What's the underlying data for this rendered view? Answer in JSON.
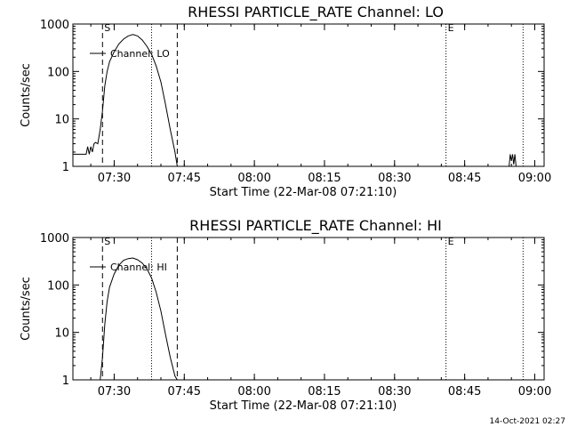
{
  "footer": {
    "timestamp": "14-Oct-2021 02:27"
  },
  "chart_data": [
    {
      "type": "line",
      "title": "RHESSI PARTICLE_RATE Channel: LO",
      "xlabel": "Start Time (22-Mar-08 07:21:10)",
      "ylabel": "Counts/sec",
      "yscale": "log",
      "xlim": [
        "07:21:10",
        "09:02:00"
      ],
      "ylim": [
        1,
        1000
      ],
      "x_ticks": [
        "07:30",
        "07:45",
        "08:00",
        "08:15",
        "08:30",
        "08:45",
        "09:00"
      ],
      "y_ticks": [
        "1",
        "10",
        "100",
        "1000"
      ],
      "legend": {
        "label": "Channel: LO",
        "placement": "top-left"
      },
      "markers": [
        {
          "label": "S",
          "time": "07:27:30",
          "style": "dashed"
        },
        {
          "label": "",
          "time": "07:38:00",
          "style": "dotted"
        },
        {
          "label": "",
          "time": "07:43:30",
          "style": "dashed"
        },
        {
          "label": "E",
          "time": "08:41:00",
          "style": "dotted"
        },
        {
          "label": "",
          "time": "08:57:30",
          "style": "dotted"
        }
      ],
      "series": [
        {
          "name": "Channel: LO",
          "segments": [
            [
              [
                "07:21:10",
                1.8
              ],
              [
                "07:22:00",
                1.8
              ],
              [
                "07:23:00",
                1.8
              ],
              [
                "07:24:00",
                1.8
              ],
              [
                "07:24:20",
                2.6
              ],
              [
                "07:24:40",
                1.8
              ],
              [
                "07:25:00",
                2.6
              ],
              [
                "07:25:20",
                2.0
              ],
              [
                "07:25:40",
                3.0
              ],
              [
                "07:26:00",
                3.2
              ],
              [
                "07:26:30",
                3.0
              ],
              [
                "07:27:00",
                6.0
              ],
              [
                "07:27:30",
                15
              ],
              [
                "07:28:00",
                50
              ],
              [
                "07:28:30",
                100
              ],
              [
                "07:29:00",
                160
              ],
              [
                "07:30:00",
                260
              ],
              [
                "07:31:00",
                380
              ],
              [
                "07:32:00",
                480
              ],
              [
                "07:33:00",
                560
              ],
              [
                "07:34:00",
                600
              ],
              [
                "07:35:00",
                560
              ],
              [
                "07:36:00",
                460
              ],
              [
                "07:37:00",
                340
              ],
              [
                "07:38:00",
                230
              ],
              [
                "07:39:00",
                130
              ],
              [
                "07:40:00",
                60
              ],
              [
                "07:41:00",
                20
              ],
              [
                "07:42:00",
                6
              ],
              [
                "07:43:00",
                2
              ],
              [
                "07:43:30",
                1
              ]
            ],
            [
              [
                "08:54:30",
                1
              ],
              [
                "08:54:45",
                1.8
              ],
              [
                "08:55:00",
                1.3
              ],
              [
                "08:55:15",
                1.8
              ],
              [
                "08:55:30",
                1.1
              ],
              [
                "08:55:45",
                1.8
              ],
              [
                "08:56:00",
                1
              ]
            ]
          ]
        }
      ]
    },
    {
      "type": "line",
      "title": "RHESSI PARTICLE_RATE Channel: HI",
      "xlabel": "Start Time (22-Mar-08 07:21:10)",
      "ylabel": "Counts/sec",
      "yscale": "log",
      "xlim": [
        "07:21:10",
        "09:02:00"
      ],
      "ylim": [
        1,
        1000
      ],
      "x_ticks": [
        "07:30",
        "07:45",
        "08:00",
        "08:15",
        "08:30",
        "08:45",
        "09:00"
      ],
      "y_ticks": [
        "1",
        "10",
        "100",
        "1000"
      ],
      "legend": {
        "label": "Channel: HI",
        "placement": "top-left"
      },
      "markers": [
        {
          "label": "S",
          "time": "07:27:30",
          "style": "dashed"
        },
        {
          "label": "",
          "time": "07:38:00",
          "style": "dotted"
        },
        {
          "label": "",
          "time": "07:43:30",
          "style": "dashed"
        },
        {
          "label": "E",
          "time": "08:41:00",
          "style": "dotted"
        },
        {
          "label": "",
          "time": "08:57:30",
          "style": "dotted"
        }
      ],
      "series": [
        {
          "name": "Channel: HI",
          "segments": [
            [
              [
                "07:27:00",
                1
              ],
              [
                "07:27:30",
                3
              ],
              [
                "07:28:00",
                15
              ],
              [
                "07:28:30",
                45
              ],
              [
                "07:29:00",
                90
              ],
              [
                "07:30:00",
                170
              ],
              [
                "07:31:00",
                260
              ],
              [
                "07:32:00",
                330
              ],
              [
                "07:33:00",
                360
              ],
              [
                "07:34:00",
                370
              ],
              [
                "07:35:00",
                340
              ],
              [
                "07:36:00",
                290
              ],
              [
                "07:37:00",
                220
              ],
              [
                "07:38:00",
                140
              ],
              [
                "07:39:00",
                70
              ],
              [
                "07:40:00",
                28
              ],
              [
                "07:41:00",
                9
              ],
              [
                "07:42:00",
                3
              ],
              [
                "07:43:00",
                1.2
              ],
              [
                "07:43:30",
                1
              ]
            ]
          ]
        }
      ]
    }
  ]
}
